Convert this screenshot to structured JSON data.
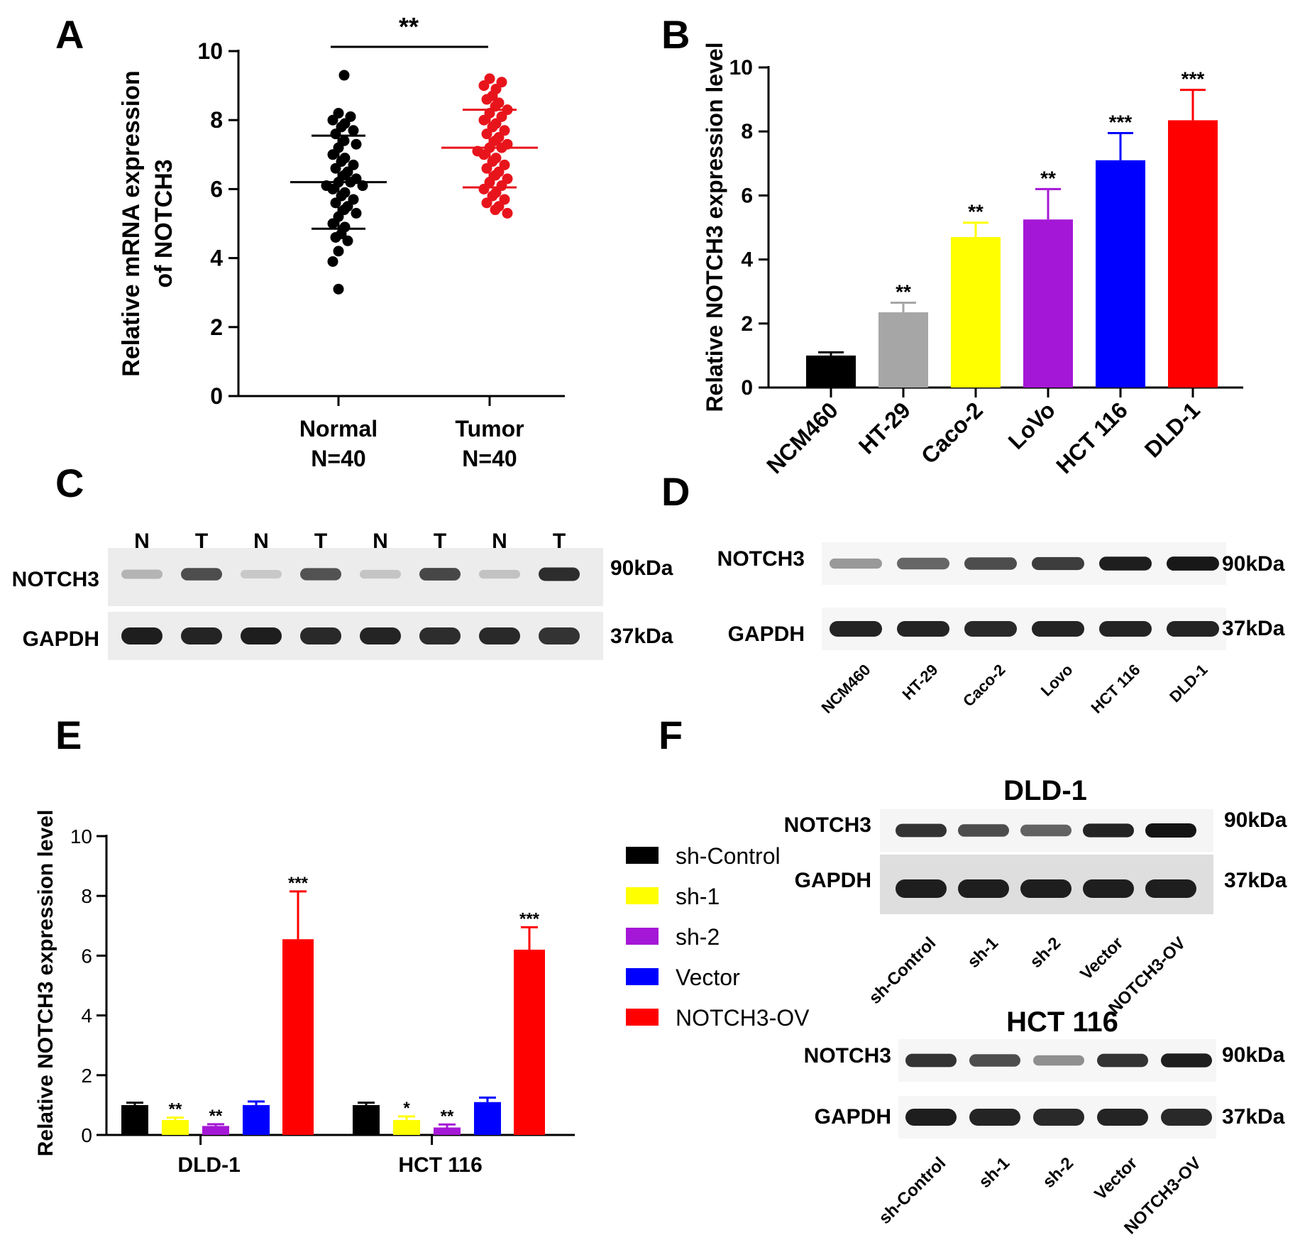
{
  "panel_letters": [
    "A",
    "B",
    "C",
    "D",
    "E",
    "F"
  ],
  "chart_data": [
    {
      "panel": "A",
      "type": "scatter",
      "ylabel_lines": [
        "Relative mRNA expression",
        "of NOTCH3"
      ],
      "ylim": [
        0,
        10
      ],
      "yticks": [
        "0",
        "2",
        "4",
        "6",
        "8",
        "10"
      ],
      "groups": [
        {
          "label": "Normal",
          "n_label": "N=40",
          "color": "#000000",
          "mean": 6.2,
          "sd_high": 7.55,
          "sd_low": 4.85,
          "points": [
            9.3,
            8.2,
            8.1,
            8.0,
            7.9,
            7.8,
            7.7,
            7.6,
            7.4,
            7.3,
            7.2,
            7.0,
            6.9,
            6.8,
            6.7,
            6.6,
            6.5,
            6.4,
            6.3,
            6.2,
            6.2,
            6.1,
            6.1,
            6.0,
            5.9,
            5.8,
            5.7,
            5.6,
            5.5,
            5.4,
            5.3,
            5.2,
            5.0,
            4.9,
            4.7,
            4.6,
            4.5,
            4.2,
            3.9,
            3.1
          ]
        },
        {
          "label": "Tumor",
          "n_label": "N=40",
          "color": "#e8141c",
          "mean": 7.2,
          "sd_high": 8.3,
          "sd_low": 6.05,
          "points": [
            9.2,
            9.1,
            9.0,
            8.9,
            8.7,
            8.6,
            8.5,
            8.4,
            8.3,
            8.2,
            8.1,
            8.0,
            7.9,
            7.8,
            7.7,
            7.6,
            7.5,
            7.4,
            7.3,
            7.2,
            7.2,
            7.1,
            7.0,
            6.9,
            6.8,
            6.7,
            6.6,
            6.5,
            6.4,
            6.3,
            6.2,
            6.1,
            6.0,
            5.9,
            5.8,
            5.7,
            5.6,
            5.5,
            5.4,
            5.3
          ]
        }
      ],
      "significance": "**"
    },
    {
      "panel": "B",
      "type": "bar",
      "ylabel": "Relative  NOTCH3 expression level",
      "ylim": [
        0,
        10
      ],
      "yticks": [
        "0",
        "2",
        "4",
        "6",
        "8",
        "10"
      ],
      "categories": [
        "NCM460",
        "HT-29",
        "Caco-2",
        "LoVo",
        "HCT 116",
        "DLD-1"
      ],
      "values": [
        1.0,
        2.35,
        4.7,
        5.25,
        7.1,
        8.35
      ],
      "errors": [
        0.1,
        0.3,
        0.45,
        0.95,
        0.85,
        0.95
      ],
      "colors": [
        "#000000",
        "#a6a6a6",
        "#ffff00",
        "#a517d6",
        "#0000ff",
        "#ff0000"
      ],
      "significance": [
        "",
        "**",
        "**",
        "**",
        "***",
        "***"
      ]
    },
    {
      "panel": "E",
      "type": "bar",
      "ylabel": "Relative  NOTCH3 expression level",
      "ylim": [
        0,
        10
      ],
      "yticks": [
        "0",
        "2",
        "4",
        "6",
        "8",
        "10"
      ],
      "categories": [
        "DLD-1",
        "HCT 116"
      ],
      "series": [
        {
          "name": "sh-Control",
          "color": "#000000",
          "values": [
            1.0,
            1.0
          ],
          "errors": [
            0.08,
            0.08
          ],
          "significance": [
            "",
            ""
          ]
        },
        {
          "name": "sh-1",
          "color": "#ffff00",
          "values": [
            0.5,
            0.5
          ],
          "errors": [
            0.08,
            0.12
          ],
          "significance": [
            "**",
            "*"
          ]
        },
        {
          "name": "sh-2",
          "color": "#a517d6",
          "values": [
            0.3,
            0.25
          ],
          "errors": [
            0.06,
            0.1
          ],
          "significance": [
            "**",
            "**"
          ]
        },
        {
          "name": "Vector",
          "color": "#0000ff",
          "values": [
            1.0,
            1.1
          ],
          "errors": [
            0.12,
            0.15
          ],
          "significance": [
            "",
            ""
          ]
        },
        {
          "name": "NOTCH3-OV",
          "color": "#ff0000",
          "values": [
            6.55,
            6.2
          ],
          "errors": [
            1.6,
            0.75
          ],
          "significance": [
            "***",
            "***"
          ]
        }
      ]
    }
  ],
  "blots": {
    "C": {
      "lane_labels": [
        "N",
        "T",
        "N",
        "T",
        "N",
        "T",
        "N",
        "T"
      ],
      "notch3_intensity": [
        0.22,
        0.72,
        0.12,
        0.7,
        0.14,
        0.75,
        0.15,
        0.88
      ],
      "gapdh_intensity": [
        0.95,
        0.92,
        0.95,
        0.9,
        0.92,
        0.88,
        0.9,
        0.85
      ],
      "row_labels": [
        "NOTCH3",
        "GAPDH"
      ],
      "kda_labels": [
        "90kDa",
        "37kDa"
      ]
    },
    "D": {
      "lane_labels": [
        "NCM460",
        "HT-29",
        "Caco-2",
        "Lovo",
        "HCT 116",
        "DLD-1"
      ],
      "notch3_intensity": [
        0.35,
        0.6,
        0.72,
        0.8,
        0.95,
        0.98
      ],
      "gapdh_intensity": [
        0.92,
        0.92,
        0.9,
        0.92,
        0.92,
        0.92
      ],
      "row_labels": [
        "NOTCH3",
        "GAPDH"
      ],
      "kda_labels": [
        "90kDa",
        "37kDa"
      ]
    },
    "F1": {
      "title": "DLD-1",
      "lane_labels": [
        "sh-Control",
        "sh-1",
        "sh-2",
        "Vector",
        "NOTCH3-OV"
      ],
      "notch3_intensity": [
        0.85,
        0.72,
        0.62,
        0.92,
        1.0
      ],
      "gapdh_intensity": [
        0.95,
        0.95,
        0.95,
        0.95,
        0.95
      ],
      "row_labels": [
        "NOTCH3",
        "GAPDH"
      ],
      "kda_labels": [
        "90kDa",
        "37kDa"
      ]
    },
    "F2": {
      "title": "HCT 116",
      "lane_labels": [
        "sh-Control",
        "sh-1",
        "sh-2",
        "Vector",
        "NOTCH3-OV"
      ],
      "notch3_intensity": [
        0.85,
        0.72,
        0.4,
        0.85,
        0.95
      ],
      "gapdh_intensity": [
        0.95,
        0.92,
        0.9,
        0.92,
        0.9
      ],
      "row_labels": [
        "NOTCH3",
        "GAPDH"
      ],
      "kda_labels": [
        "90kDa",
        "37kDa"
      ]
    }
  }
}
